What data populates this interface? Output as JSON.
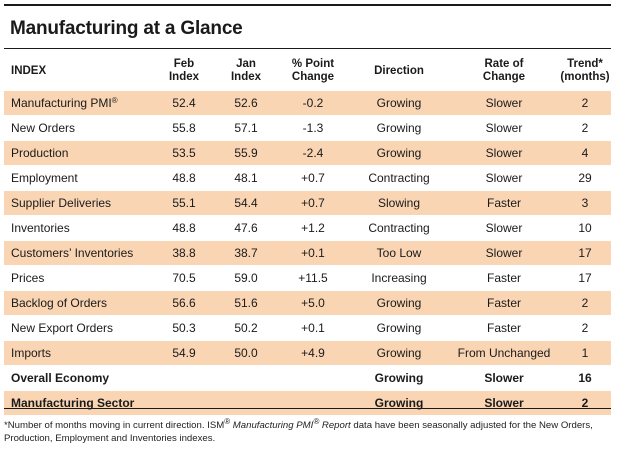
{
  "title": "Manufacturing at a Glance",
  "headers": {
    "index": "INDEX",
    "feb_line1": "Feb",
    "feb_line2": "Index",
    "jan_line1": "Jan",
    "jan_line2": "Index",
    "pct_line1": "% Point",
    "pct_line2": "Change",
    "direction": "Direction",
    "rate_line1": "Rate of",
    "rate_line2": "Change",
    "trend_line1": "Trend*",
    "trend_line2": "(months)"
  },
  "rows": [
    {
      "index": "Manufacturing PMI",
      "sup": "®",
      "feb": "52.4",
      "jan": "52.6",
      "pct": "-0.2",
      "direction": "Growing",
      "rate": "Slower",
      "trend": "2"
    },
    {
      "index": "New Orders",
      "feb": "55.8",
      "jan": "57.1",
      "pct": "-1.3",
      "direction": "Growing",
      "rate": "Slower",
      "trend": "2"
    },
    {
      "index": "Production",
      "feb": "53.5",
      "jan": "55.9",
      "pct": "-2.4",
      "direction": "Growing",
      "rate": "Slower",
      "trend": "4"
    },
    {
      "index": "Employment",
      "feb": "48.8",
      "jan": "48.1",
      "pct": "+0.7",
      "direction": "Contracting",
      "rate": "Slower",
      "trend": "29"
    },
    {
      "index": "Supplier Deliveries",
      "feb": "55.1",
      "jan": "54.4",
      "pct": "+0.7",
      "direction": "Slowing",
      "rate": "Faster",
      "trend": "3"
    },
    {
      "index": "Inventories",
      "feb": "48.8",
      "jan": "47.6",
      "pct": "+1.2",
      "direction": "Contracting",
      "rate": "Slower",
      "trend": "10"
    },
    {
      "index": "Customers’ Inventories",
      "feb": "38.8",
      "jan": "38.7",
      "pct": "+0.1",
      "direction": "Too Low",
      "rate": "Slower",
      "trend": "17"
    },
    {
      "index": "Prices",
      "feb": "70.5",
      "jan": "59.0",
      "pct": "+11.5",
      "direction": "Increasing",
      "rate": "Faster",
      "trend": "17"
    },
    {
      "index": "Backlog of Orders",
      "feb": "56.6",
      "jan": "51.6",
      "pct": "+5.0",
      "direction": "Growing",
      "rate": "Faster",
      "trend": "2"
    },
    {
      "index": "New Export Orders",
      "feb": "50.3",
      "jan": "50.2",
      "pct": "+0.1",
      "direction": "Growing",
      "rate": "Faster",
      "trend": "2"
    },
    {
      "index": "Imports",
      "feb": "54.9",
      "jan": "50.0",
      "pct": "+4.9",
      "direction": "Growing",
      "rate": "From Unchanged",
      "trend": "1"
    }
  ],
  "summary": [
    {
      "index": "Overall Economy",
      "direction": "Growing",
      "rate": "Slower",
      "trend": "16"
    },
    {
      "index": "Manufacturing Sector",
      "direction": "Growing",
      "rate": "Slower",
      "trend": "2"
    }
  ],
  "footnote": {
    "part1": "*Number of months moving in current direction. ISM",
    "reg1": "®",
    "italic": "Manufacturing PMI",
    "reg2": "®",
    "italic2": "Report",
    "part2": "data have been seasonally adjusted for the New Orders, Production, Employment and Inventories indexes."
  },
  "colors": {
    "shade": "#f9d5b4",
    "rule": "#1a1a1a"
  }
}
